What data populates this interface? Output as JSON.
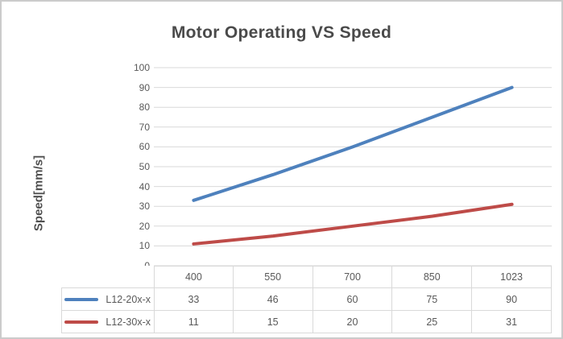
{
  "window": {
    "background": "#ffffff",
    "frame_border_color": "#cbcbcb"
  },
  "chart_data": {
    "type": "line",
    "title": "Motor Operating VS Speed",
    "xlabel": "",
    "ylabel": "Speed[mm/s]",
    "categories": [
      "400",
      "550",
      "700",
      "850",
      "1023"
    ],
    "series": [
      {
        "name": "L12-20x-x",
        "color": "#4E81BD",
        "values": [
          33,
          46,
          60,
          75,
          90
        ]
      },
      {
        "name": "L12-30x-x",
        "color": "#BE4B48",
        "values": [
          11,
          15,
          20,
          25,
          31
        ]
      }
    ],
    "ylim": [
      0,
      100
    ],
    "yticks": [
      0,
      10,
      20,
      30,
      40,
      50,
      60,
      70,
      80,
      90,
      100
    ],
    "grid": "horizontal-only",
    "legend_position": "data-table-left-column",
    "colors": {
      "gridline": "#d9d9d9",
      "table_border": "#d9d9d9",
      "tick_text": "#595959",
      "title_text": "#4a4a4a",
      "axis_title_text": "#4f4f4f",
      "table_text": "#595959"
    }
  }
}
